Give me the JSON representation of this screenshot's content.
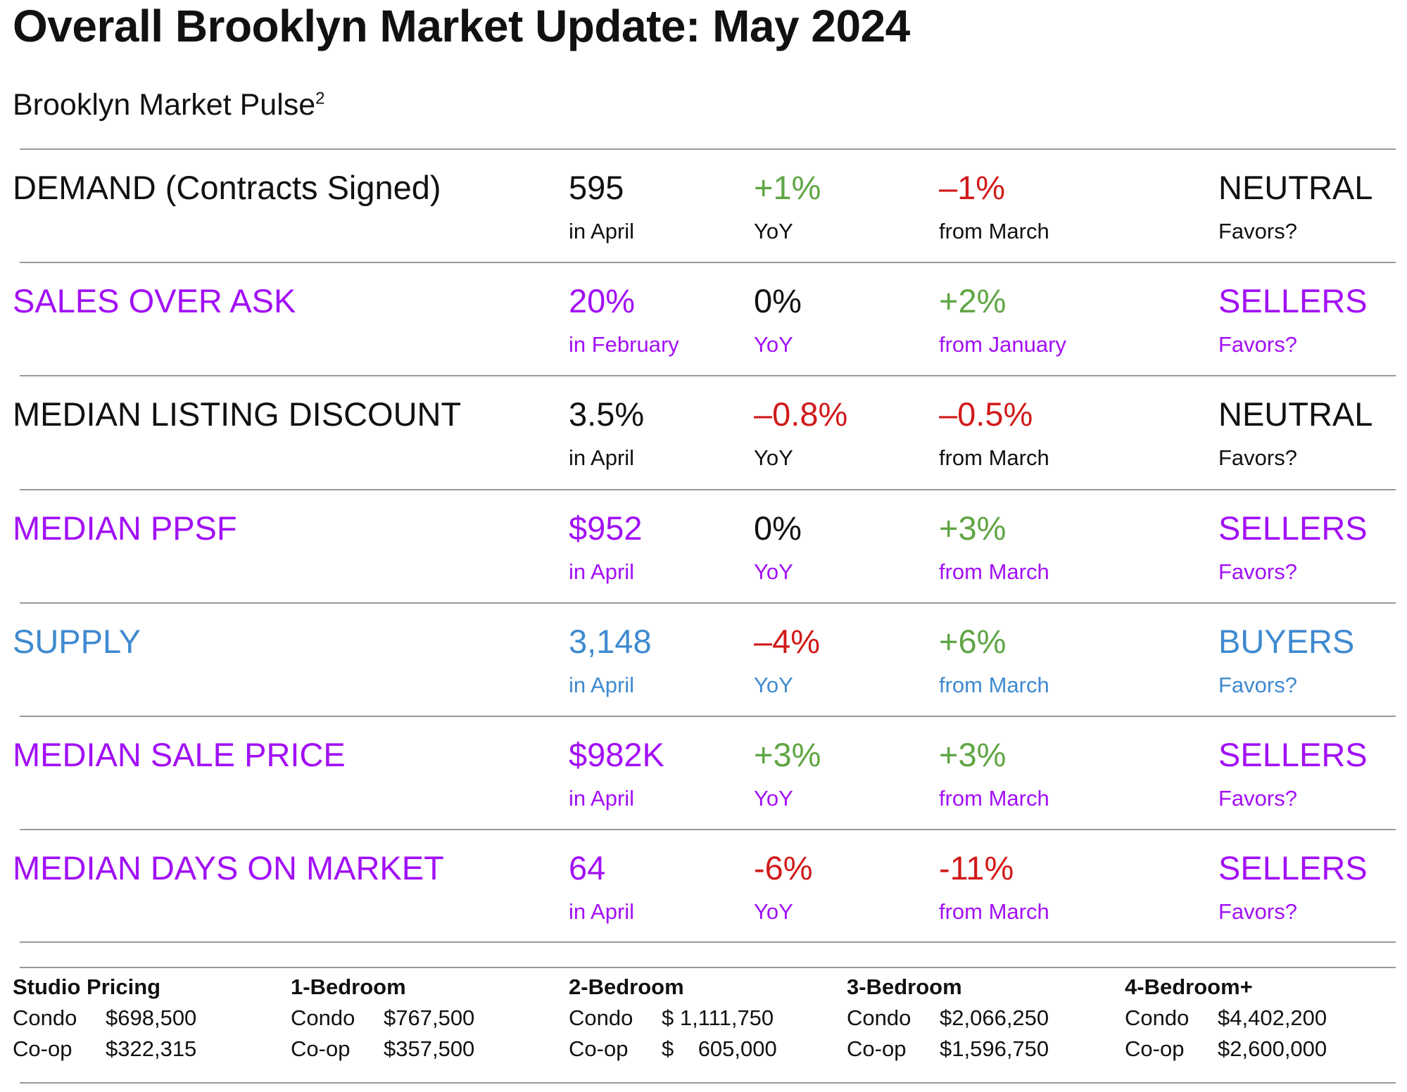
{
  "header": {
    "title": "Overall Brooklyn Market Update: May 2024",
    "subtitle": "Brooklyn Market Pulse",
    "subtitle_sup": "2"
  },
  "colors": {
    "black": "#111111",
    "purple": "#a210f5",
    "blue": "#3f8ad0",
    "green": "#5fa544",
    "red": "#d11a1a",
    "rule": "#9a9a9a"
  },
  "metrics": [
    {
      "label": "DEMAND (Contracts Signed)",
      "value": "595",
      "period": "in April",
      "yoy": "+1%",
      "yoy_label": "YoY",
      "mom": "–1%",
      "mom_label": "from March",
      "favor": "NEUTRAL",
      "favor_label": "Favors?"
    },
    {
      "label": "SALES OVER ASK",
      "value": "20%",
      "period": "in February",
      "yoy": "0%",
      "yoy_label": "YoY",
      "mom": "+2%",
      "mom_label": "from January",
      "favor": "SELLERS",
      "favor_label": "Favors?"
    },
    {
      "label": "MEDIAN LISTING DISCOUNT",
      "value": "3.5%",
      "period": "in April",
      "yoy": "–0.8%",
      "yoy_label": "YoY",
      "mom": "–0.5%",
      "mom_label": "from March",
      "favor": "NEUTRAL",
      "favor_label": "Favors?"
    },
    {
      "label": "MEDIAN PPSF",
      "value": "$952",
      "period": "in April",
      "yoy": "0%",
      "yoy_label": "YoY",
      "mom": "+3%",
      "mom_label": "from March",
      "favor": "SELLERS",
      "favor_label": "Favors?"
    },
    {
      "label": "SUPPLY",
      "value": "3,148",
      "period": "in April",
      "yoy": "–4%",
      "yoy_label": "YoY",
      "mom": "+6%",
      "mom_label": "from March",
      "favor": "BUYERS",
      "favor_label": "Favors?"
    },
    {
      "label": "MEDIAN SALE PRICE",
      "value": "$982K",
      "period": "in April",
      "yoy": "+3%",
      "yoy_label": "YoY",
      "mom": "+3%",
      "mom_label": "from March",
      "favor": "SELLERS",
      "favor_label": "Favors?"
    },
    {
      "label": "MEDIAN DAYS ON MARKET",
      "value": "64",
      "period": "in April",
      "yoy": "-6%",
      "yoy_label": "YoY",
      "mom": "-11%",
      "mom_label": "from March",
      "favor": "SELLERS",
      "favor_label": "Favors?"
    }
  ],
  "pricing": [
    {
      "heading": "Studio Pricing",
      "condo_label": "Condo",
      "condo": "$698,500",
      "coop_label": "Co-op",
      "coop": "$322,315"
    },
    {
      "heading": "1-Bedroom",
      "condo_label": "Condo",
      "condo": "$767,500",
      "coop_label": "Co-op",
      "coop": "$357,500"
    },
    {
      "heading": "2-Bedroom",
      "condo_label": "Condo",
      "condo": "$ 1,111,750",
      "coop_label": "Co-op",
      "coop": "$    605,000"
    },
    {
      "heading": "3-Bedroom",
      "condo_label": "Condo",
      "condo": "$2,066,250",
      "coop_label": "Co-op",
      "coop": "$1,596,750"
    },
    {
      "heading": "4-Bedroom+",
      "condo_label": "Condo",
      "condo": "$4,402,200",
      "coop_label": "Co-op",
      "coop": "$2,600,000"
    }
  ]
}
